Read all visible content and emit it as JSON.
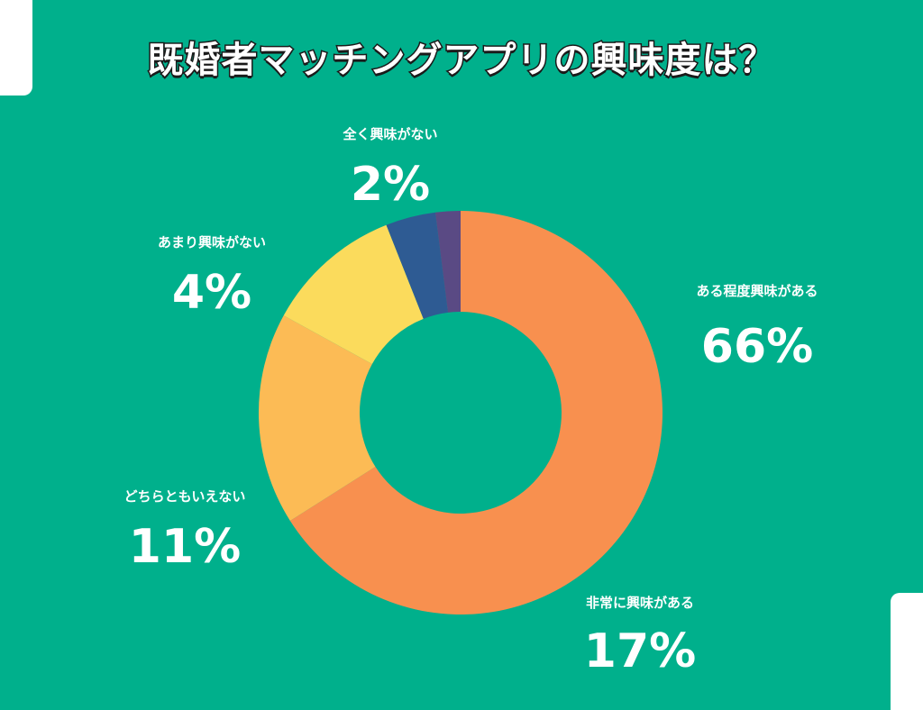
{
  "title": "既婚者マッチングアプリの興味度は？",
  "chart_data": {
    "type": "pie",
    "categories": [
      "ある程度興味がある",
      "非常に興味がある",
      "どちらともいえない",
      "あまり興味がない",
      "全く興味がない"
    ],
    "values": [
      66,
      17,
      11,
      4,
      2
    ],
    "colors": [
      "#f8904f",
      "#fcbb55",
      "#fbdb5c",
      "#2e5b93",
      "#5a4a84"
    ],
    "value_labels": [
      "66%",
      "17%",
      "11%",
      "4%",
      "2%"
    ]
  }
}
